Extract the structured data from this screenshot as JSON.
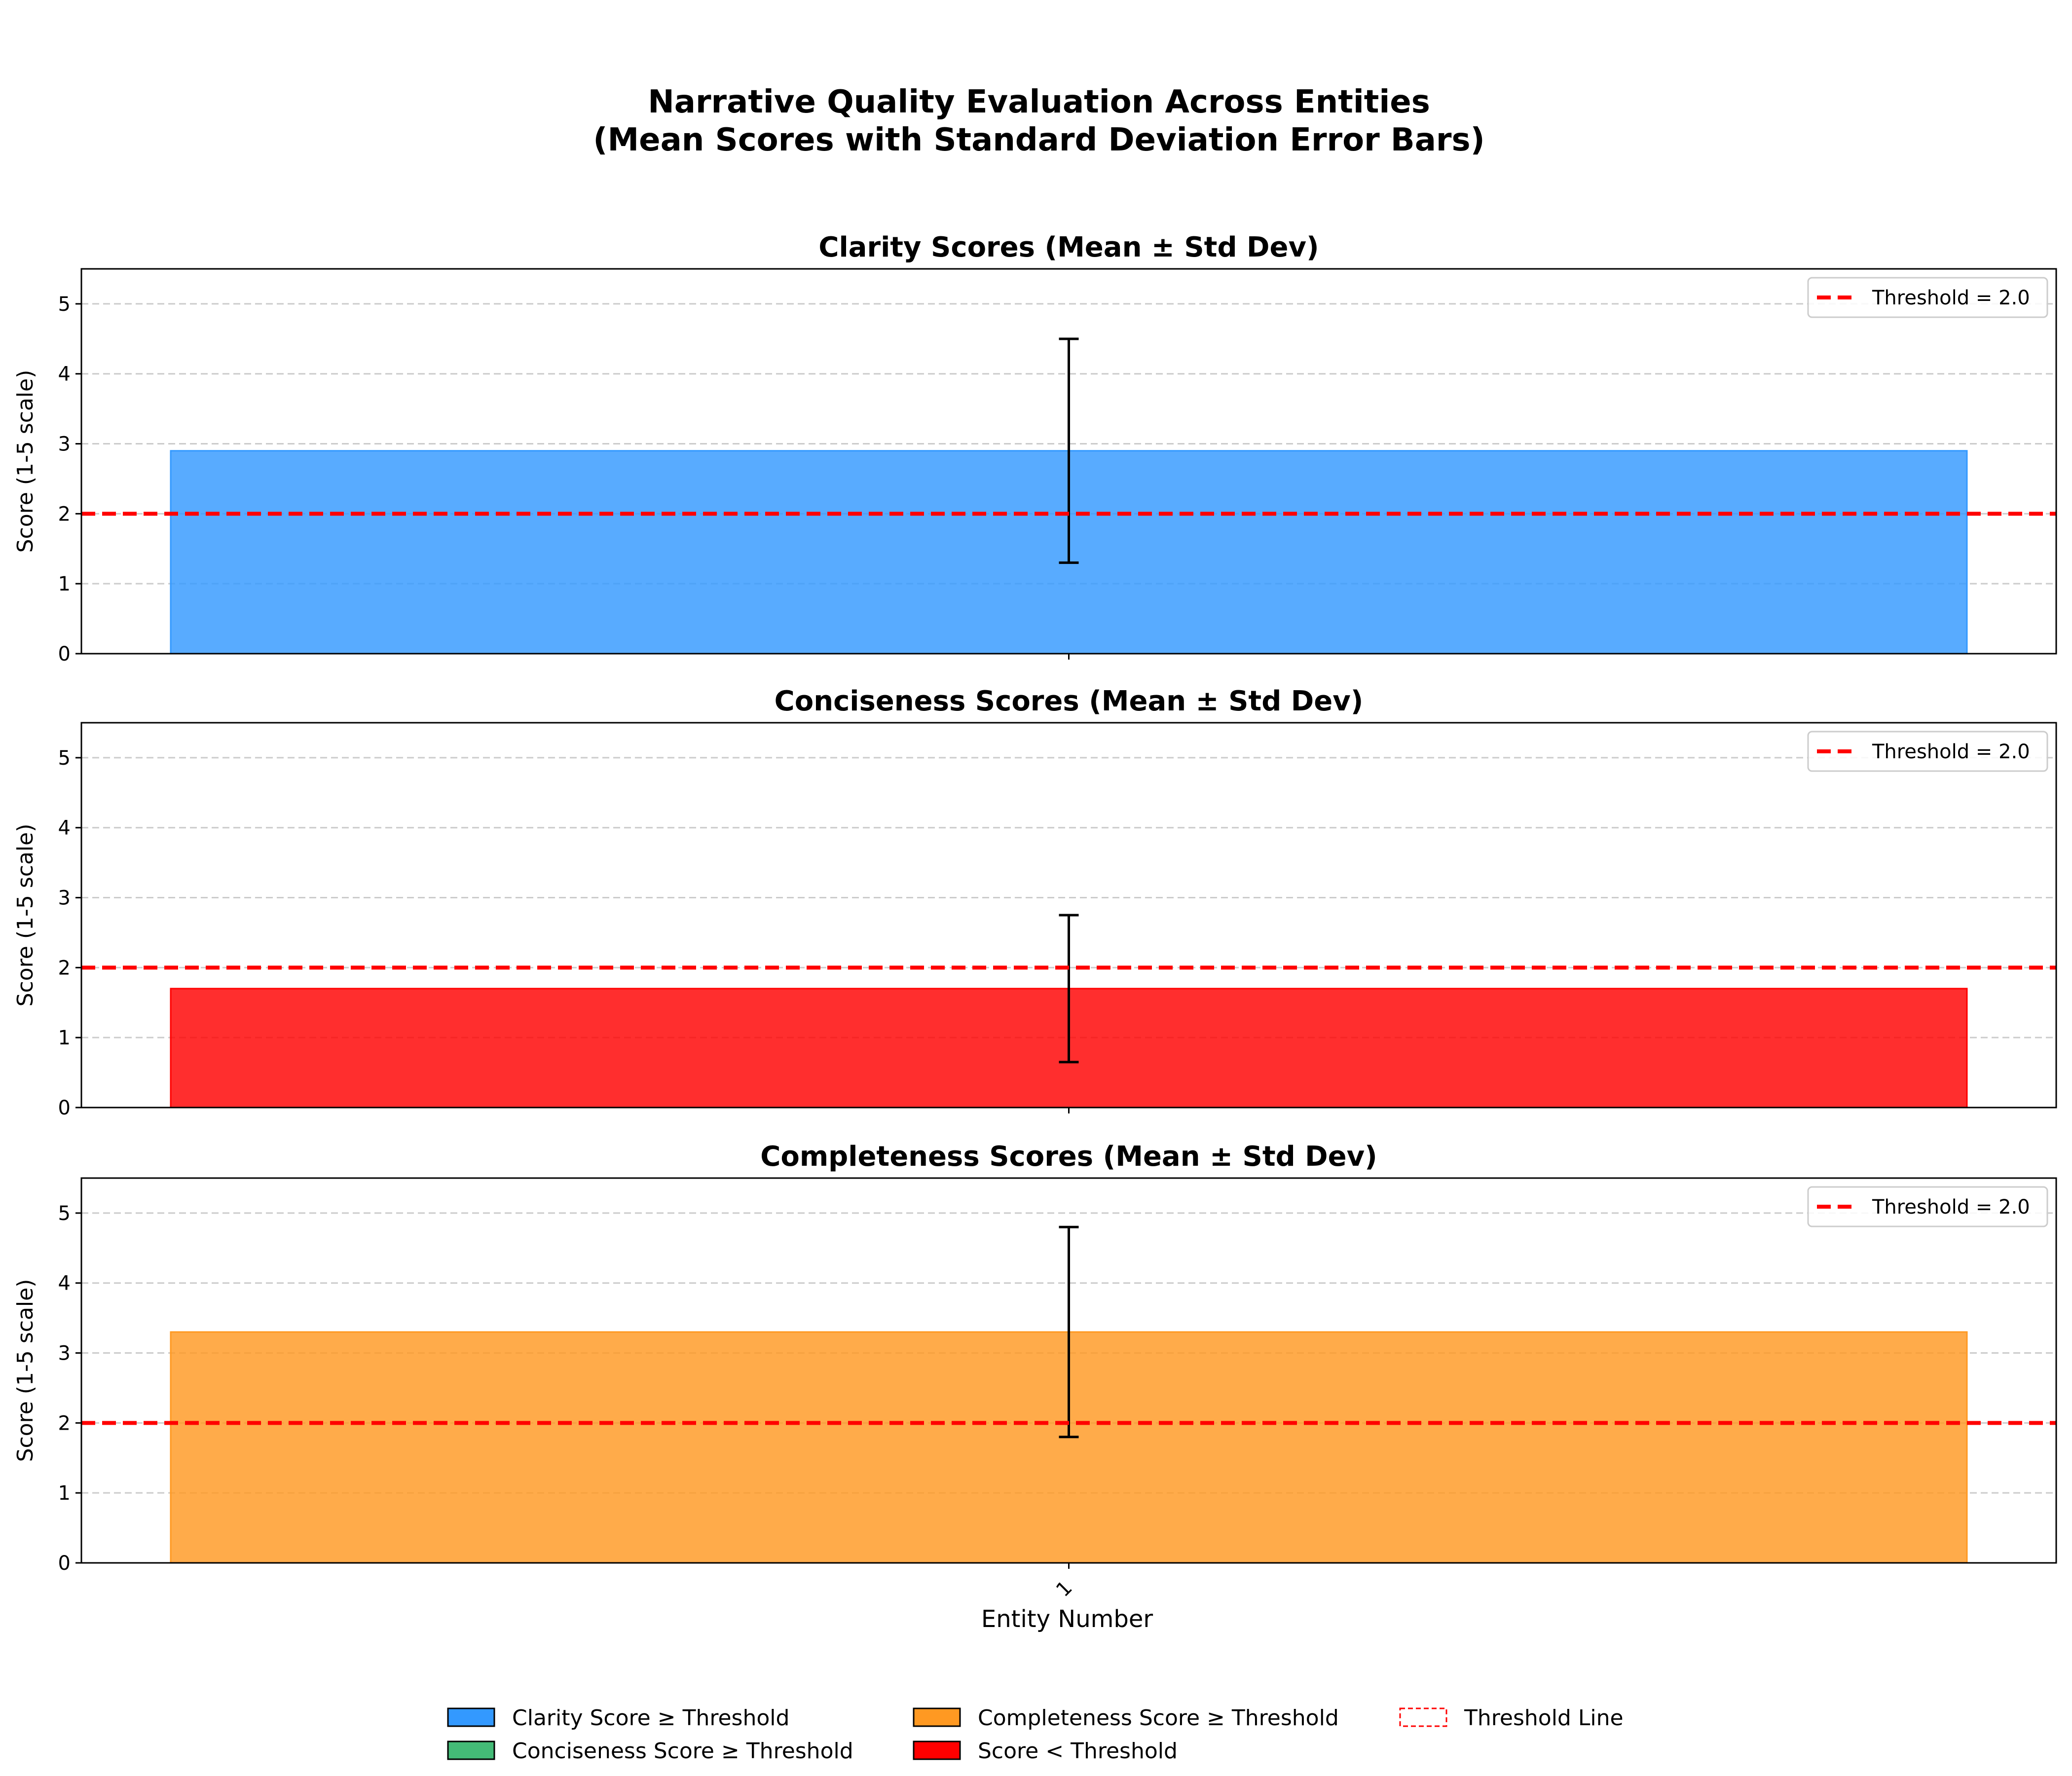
{
  "chart_data": {
    "type": "bar",
    "suptitle_lines": [
      "Narrative Quality Evaluation Across Entities",
      "(Mean Scores with Standard Deviation Error Bars)"
    ],
    "xlabel": "Entity Number",
    "categories": [
      "1"
    ],
    "threshold": 2.0,
    "threshold_label": "Threshold = 2.0",
    "grid": "y-dashed",
    "legend_position": "top-right",
    "panels": [
      {
        "title": "Clarity Scores (Mean ± Std Dev)",
        "ylabel": "Score (1-5 scale)",
        "ylim": [
          0,
          5.5
        ],
        "yticks": [
          0,
          1,
          2,
          3,
          4,
          5
        ],
        "mean": 2.9,
        "std": 1.6,
        "color": "#3399ff"
      },
      {
        "title": "Conciseness Scores (Mean ± Std Dev)",
        "ylabel": "Score (1-5 scale)",
        "ylim": [
          0,
          5.5
        ],
        "yticks": [
          0,
          1,
          2,
          3,
          4,
          5
        ],
        "mean": 1.7,
        "std": 1.05,
        "color": "#ff0000"
      },
      {
        "title": "Completeness Scores (Mean ± Std Dev)",
        "ylabel": "Score (1-5 scale)",
        "ylim": [
          0,
          5.5
        ],
        "yticks": [
          0,
          1,
          2,
          3,
          4,
          5
        ],
        "mean": 3.3,
        "std": 1.5,
        "color": "#ff9922"
      }
    ],
    "legend": [
      {
        "label": "Clarity Score ≥ Threshold",
        "color": "#3399ff",
        "kind": "patch"
      },
      {
        "label": "Conciseness Score ≥ Threshold",
        "color": "#44bb77",
        "kind": "patch"
      },
      {
        "label": "Completeness Score ≥ Threshold",
        "color": "#ff9922",
        "kind": "patch"
      },
      {
        "label": "Score < Threshold",
        "color": "#ff0000",
        "kind": "patch"
      },
      {
        "label": "Threshold Line",
        "color": "#ff0000",
        "kind": "dashed"
      }
    ]
  }
}
